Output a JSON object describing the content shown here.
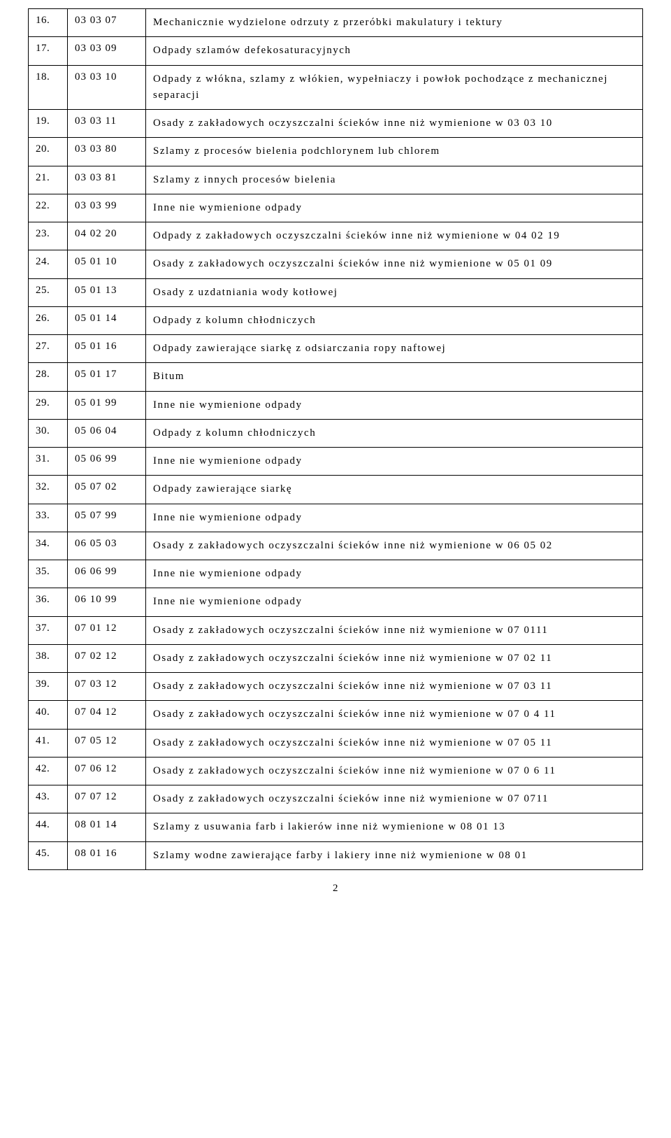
{
  "footer": "2",
  "rows": [
    {
      "num": "16.",
      "code": "03 03 07",
      "desc": "Mechanicznie wydzielone odrzuty z przeróbki makulatury i tektury"
    },
    {
      "num": "17.",
      "code": "03 03 09",
      "desc": "Odpady   szlamów defekosaturacyjnych"
    },
    {
      "num": "18.",
      "code": "03 03 10",
      "desc": "Odpady z włókna, szlamy z włókien, wypełniaczy i powłok pochodzące z mechanicznej  separacji"
    },
    {
      "num": "19.",
      "code": "03 03 11",
      "desc": "Osady z zakładowych oczyszczalni ścieków inne niż wymienione w 03 03  10"
    },
    {
      "num": "20.",
      "code": "03 03 80",
      "desc": "Szlamy z procesów bielenia podchlorynem lub  chlorem"
    },
    {
      "num": "21.",
      "code": "03 03 81",
      "desc": "Szlamy z  innych procesów bielenia"
    },
    {
      "num": "22.",
      "code": "03 03 99",
      "desc": "Inne nie wymienione odpady"
    },
    {
      "num": "23.",
      "code": "04 02 20",
      "desc": "Odpady z zakładowych oczyszczalni ścieków inne niż wymienione w 04 02  19"
    },
    {
      "num": "24.",
      "code": "05 01  10",
      "desc": "Osady z zakładowych oczyszczalni ścieków inne niż wymienione w 05 01  09"
    },
    {
      "num": "25.",
      "code": "05 01  13",
      "desc": "Osady z uzdatniania wody kotłowej"
    },
    {
      "num": "26.",
      "code": "05 01  14",
      "desc": "Odpady z kolumn chłodniczych"
    },
    {
      "num": "27.",
      "code": "05 01  16",
      "desc": "Odpady zawierające  siarkę z  odsiarczania ropy naftowej"
    },
    {
      "num": "28.",
      "code": "05 01  17",
      "desc": "Bitum"
    },
    {
      "num": "29.",
      "code": "05 01  99",
      "desc": "Inne nie wymienione odpady"
    },
    {
      "num": "30.",
      "code": "05 06 04",
      "desc": "Odpady z kolumn chłodniczych"
    },
    {
      "num": "31.",
      "code": "05 06 99",
      "desc": "Inne nie wymienione odpady"
    },
    {
      "num": "32.",
      "code": "05 07 02",
      "desc": "Odpady  zawierające  siarkę"
    },
    {
      "num": "33.",
      "code": "05 07 99",
      "desc": "Inne nie wymienione odpady"
    },
    {
      "num": "34.",
      "code": "06 05 03",
      "desc": "Osady z zakładowych oczyszczalni ścieków inne niż wymienione w 06 05 02"
    },
    {
      "num": "35.",
      "code": "06 06 99",
      "desc": "Inne nie wymienione odpady"
    },
    {
      "num": "36.",
      "code": "06 10 99",
      "desc": "Inne nie wymienione odpady"
    },
    {
      "num": "37.",
      "code": "07 01  12",
      "desc": "Osady z zakładowych oczyszczalni ścieków inne niż wymienione w 07 0111"
    },
    {
      "num": "38.",
      "code": "07 02  12",
      "desc": "Osady z zakładowych oczyszczalni ścieków inne niż wymienione w 07 02  11"
    },
    {
      "num": "39.",
      "code": "07 03  12",
      "desc": "Osady z zakładowych oczyszczalni ścieków inne niż wymienione w 07 03  11"
    },
    {
      "num": "40.",
      "code": "07 04  12",
      "desc": "Osady z zakładowych oczyszczalni ścieków inne niż wymienione w 07 0 4 11"
    },
    {
      "num": "41.",
      "code": "07 05  12",
      "desc": "Osady z zakładowych oczyszczalni ścieków inne niż wymienione w 07 05  11"
    },
    {
      "num": "42.",
      "code": "07 06  12",
      "desc": "Osady z zakładowych oczyszczalni ścieków inne niż wymienione w 07 0 6 11"
    },
    {
      "num": "43.",
      "code": "07 07  12",
      "desc": "Osady z zakładowych oczyszczalni ścieków inne niż wymienione w 07 0711"
    },
    {
      "num": "44.",
      "code": "08 01  14",
      "desc": "Szlamy z usuwania farb i lakierów inne niż wymienione w 08 01  13"
    },
    {
      "num": "45.",
      "code": "08 01  16",
      "desc": "Szlamy wodne zawierające farby i lakiery inne niż wymienione w 08 01"
    }
  ]
}
